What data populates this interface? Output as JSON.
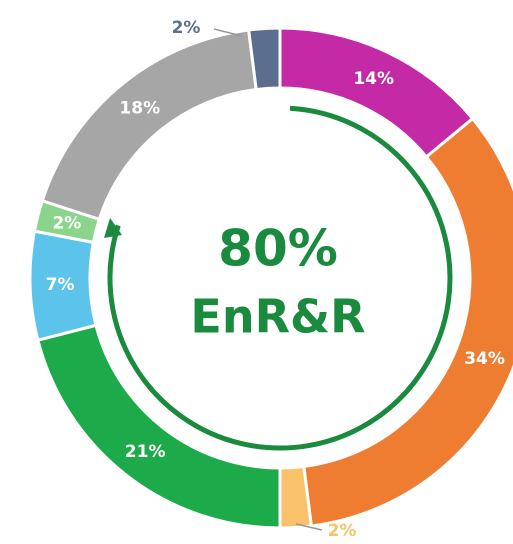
{
  "chart_data": {
    "type": "donut",
    "center_text": [
      "80%",
      "EnR&R"
    ],
    "categories": [
      null,
      null,
      null,
      null,
      null,
      null,
      null,
      null
    ],
    "values": [
      14,
      34,
      2,
      21,
      7,
      2,
      18,
      2
    ],
    "value_labels": [
      "14%",
      "34%",
      "2%",
      "21%",
      "7%",
      "2%",
      "18%",
      "2%"
    ],
    "colors": [
      "#c42aa6",
      "#ee7d31",
      "#f8c16a",
      "#1daa4a",
      "#5cc3ea",
      "#8bd48b",
      "#a6a6a6",
      "#5b6e8f"
    ]
  }
}
